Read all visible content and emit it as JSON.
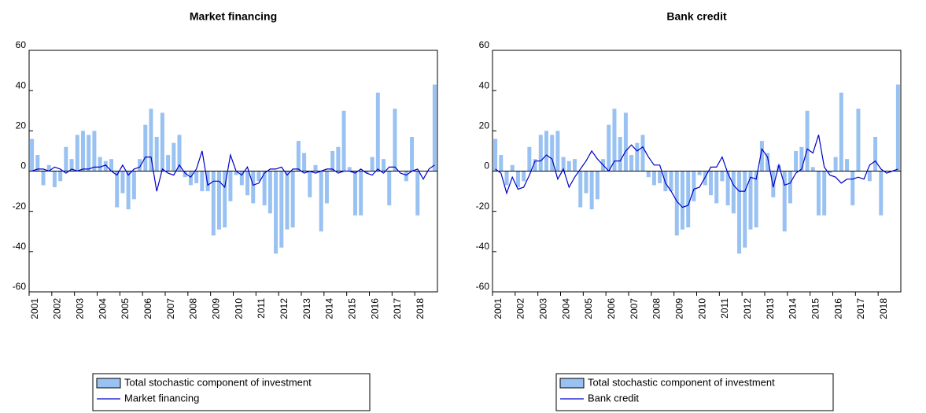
{
  "chart_data": [
    {
      "type": "bar_line",
      "title": "Market financing",
      "categories": [
        "2001",
        null,
        null,
        null,
        "2002",
        null,
        null,
        null,
        "2003",
        null,
        null,
        null,
        "2004",
        null,
        null,
        null,
        "2005",
        null,
        null,
        null,
        "2006",
        null,
        null,
        null,
        "2007",
        null,
        null,
        null,
        "2008",
        null,
        null,
        null,
        "2009",
        null,
        null,
        null,
        "2010",
        null,
        null,
        null,
        "2011",
        null,
        null,
        null,
        "2012",
        null,
        null,
        null,
        "2013",
        null,
        null,
        null,
        "2014",
        null,
        null,
        null,
        "2015",
        null,
        null,
        null,
        "2016",
        null,
        null,
        null,
        "2017",
        null,
        null,
        null,
        "2018",
        null,
        null,
        null
      ],
      "series": [
        {
          "name": "Total stochastic component of investment",
          "kind": "bar",
          "color": "#99c2f2",
          "values": [
            16,
            8,
            -7,
            3,
            -8,
            -5,
            12,
            6,
            18,
            20,
            18,
            20,
            7,
            5,
            6,
            -18,
            -11,
            -19,
            -14,
            6,
            23,
            31,
            17,
            29,
            8,
            14,
            18,
            -3,
            -7,
            -6,
            -10,
            -10,
            -32,
            -29,
            -28,
            -15,
            -2,
            -7,
            -12,
            -16,
            -5,
            -17,
            -21,
            -41,
            -38,
            -29,
            -28,
            15,
            9,
            -13,
            3,
            -30,
            -16,
            10,
            12,
            30,
            2,
            -22,
            -22,
            -1,
            7,
            39,
            6,
            -17,
            31,
            0,
            -5,
            17,
            -22,
            0,
            0,
            43
          ]
        },
        {
          "name": "Market financing",
          "kind": "line",
          "color": "#0000c8",
          "values": [
            0,
            1,
            1,
            0,
            2,
            1,
            -1,
            1,
            0,
            1,
            1,
            2,
            2,
            3,
            0,
            -2,
            3,
            -2,
            1,
            2,
            7,
            7,
            -10,
            1,
            -1,
            -2,
            3,
            -1,
            -3,
            1,
            10,
            -7,
            -5,
            -5,
            -8,
            8,
            0,
            -2,
            2,
            -7,
            -6,
            -1,
            1,
            1,
            2,
            -2,
            1,
            1,
            -1,
            0,
            -1,
            0,
            1,
            1,
            -1,
            0,
            0,
            -1,
            1,
            -1,
            -2,
            1,
            -1,
            2,
            2,
            -1,
            -2,
            0,
            1,
            -4,
            1,
            3
          ]
        }
      ],
      "ylim": [
        -60,
        60
      ],
      "yticks": [
        -60,
        -40,
        -20,
        0,
        20,
        40,
        60
      ]
    },
    {
      "type": "bar_line",
      "title": "Bank credit",
      "categories": [
        "2001",
        null,
        null,
        null,
        "2002",
        null,
        null,
        null,
        "2003",
        null,
        null,
        null,
        "2004",
        null,
        null,
        null,
        "2005",
        null,
        null,
        null,
        "2006",
        null,
        null,
        null,
        "2007",
        null,
        null,
        null,
        "2008",
        null,
        null,
        null,
        "2009",
        null,
        null,
        null,
        "2010",
        null,
        null,
        null,
        "2011",
        null,
        null,
        null,
        "2012",
        null,
        null,
        null,
        "2013",
        null,
        null,
        null,
        "2014",
        null,
        null,
        null,
        "2015",
        null,
        null,
        null,
        "2016",
        null,
        null,
        null,
        "2017",
        null,
        null,
        null,
        "2018",
        null,
        null,
        null
      ],
      "series": [
        {
          "name": "Total stochastic component of investment",
          "kind": "bar",
          "color": "#99c2f2",
          "values": [
            16,
            8,
            -7,
            3,
            -8,
            -5,
            12,
            6,
            18,
            20,
            18,
            20,
            7,
            5,
            6,
            -18,
            -11,
            -19,
            -14,
            6,
            23,
            31,
            17,
            29,
            8,
            14,
            18,
            -3,
            -7,
            -6,
            -10,
            -10,
            -32,
            -29,
            -28,
            -15,
            -2,
            -7,
            -12,
            -16,
            -5,
            -17,
            -21,
            -41,
            -38,
            -29,
            -28,
            15,
            9,
            -13,
            3,
            -30,
            -16,
            10,
            12,
            30,
            2,
            -22,
            -22,
            -1,
            7,
            39,
            6,
            -17,
            31,
            0,
            -5,
            17,
            -22,
            0,
            0,
            43
          ]
        },
        {
          "name": "Bank credit",
          "kind": "line",
          "color": "#0000c8",
          "values": [
            1,
            -1,
            -11,
            -3,
            -9,
            -8,
            -2,
            5,
            5,
            8,
            6,
            -4,
            1,
            -8,
            -3,
            1,
            5,
            10,
            6,
            3,
            0,
            5,
            5,
            10,
            13,
            10,
            12,
            7,
            3,
            3,
            -6,
            -10,
            -15,
            -18,
            -17,
            -9,
            -8,
            -3,
            2,
            2,
            7,
            -1,
            -7,
            -10,
            -10,
            -3,
            -4,
            11,
            7,
            -8,
            3,
            -7,
            -6,
            -1,
            1,
            11,
            9,
            18,
            2,
            -2,
            -3,
            -6,
            -4,
            -4,
            -3,
            -4,
            3,
            5,
            1,
            -1,
            0,
            1
          ]
        }
      ],
      "ylim": [
        -60,
        60
      ],
      "yticks": [
        -60,
        -40,
        -20,
        0,
        20,
        40,
        60
      ]
    }
  ]
}
